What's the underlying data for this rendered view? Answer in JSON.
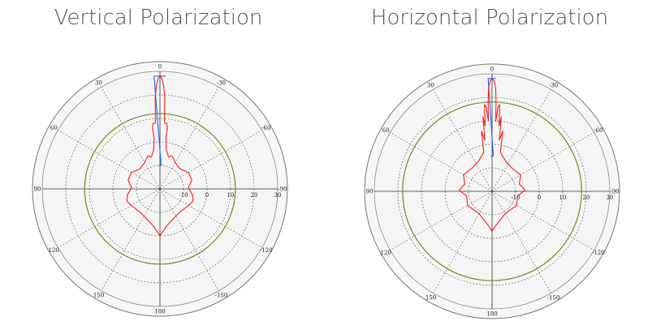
{
  "chart_data": [
    {
      "type": "polar",
      "title": "Vertical Polarization",
      "angle_labels": [
        "0",
        "-30",
        "-60",
        "-90",
        "-120",
        "-150",
        "180",
        "150",
        "120",
        "90",
        "60",
        "30"
      ],
      "radial_labels": [
        "-10",
        "0",
        "10",
        "20",
        "30"
      ],
      "grid": true,
      "reference_circle_value": 12,
      "series": [
        {
          "color": "#1f5fff",
          "points": [
            [
              -3,
              28
            ],
            [
              -2,
              28
            ],
            [
              -1,
              28
            ],
            [
              0,
              28
            ],
            [
              1,
              28
            ],
            [
              2,
              28
            ],
            [
              3,
              28
            ],
            [
              -3,
              -10
            ],
            [
              3,
              -10
            ]
          ]
        },
        {
          "color": "#ff1a1a",
          "points": [
            [
              0,
              28
            ],
            [
              -1,
              27
            ],
            [
              -2,
              24
            ],
            [
              -3,
              19
            ],
            [
              -3.5,
              12
            ],
            [
              -4,
              8
            ],
            [
              -6,
              8
            ],
            [
              -7,
              6
            ],
            [
              -6.5,
              2
            ],
            [
              -9,
              -3
            ],
            [
              -15,
              -6
            ],
            [
              -20,
              -5
            ],
            [
              -30,
              -7
            ],
            [
              -45,
              -8
            ],
            [
              -60,
              -6
            ],
            [
              -75,
              -6
            ],
            [
              -88,
              -8
            ],
            [
              -100,
              -6
            ],
            [
              -110,
              -5
            ],
            [
              -120,
              -6
            ],
            [
              -140,
              -7
            ],
            [
              -170,
              -4
            ],
            [
              180,
              0
            ],
            [
              170,
              -4
            ],
            [
              140,
              -7
            ],
            [
              120,
              -6
            ],
            [
              110,
              -5
            ],
            [
              100,
              -6
            ],
            [
              88,
              -8
            ],
            [
              75,
              -6
            ],
            [
              60,
              -6
            ],
            [
              45,
              -8
            ],
            [
              30,
              -7
            ],
            [
              20,
              -5
            ],
            [
              15,
              -6
            ],
            [
              9,
              -3
            ],
            [
              6.5,
              2
            ],
            [
              7,
              6
            ],
            [
              6,
              8
            ],
            [
              4,
              8
            ],
            [
              3.5,
              12
            ],
            [
              3,
              19
            ],
            [
              2,
              24
            ],
            [
              1,
              27
            ],
            [
              0,
              28
            ]
          ]
        }
      ]
    },
    {
      "type": "polar",
      "title": "Horizontal Polarization",
      "angle_labels": [
        "0",
        "-30",
        "-60",
        "-90",
        "-120",
        "-150",
        "180",
        "150",
        "120",
        "90",
        "60",
        "30"
      ],
      "radial_labels": [
        "-10",
        "0",
        "10",
        "20",
        "30"
      ],
      "grid": true,
      "reference_circle_value": 18,
      "series": [
        {
          "color": "#1f5fff",
          "points": [
            [
              -2,
              28
            ],
            [
              -1,
              28
            ],
            [
              0,
              28
            ],
            [
              1,
              28
            ],
            [
              2,
              28
            ],
            [
              -2,
              -5
            ],
            [
              2,
              -5
            ]
          ]
        },
        {
          "color": "#ff1a1a",
          "points": [
            [
              0,
              28
            ],
            [
              -1,
              27
            ],
            [
              -2,
              24
            ],
            [
              -2.5,
              18
            ],
            [
              -3,
              10
            ],
            [
              -4,
              16
            ],
            [
              -5,
              17
            ],
            [
              -6,
              8
            ],
            [
              -7,
              12
            ],
            [
              -8,
              2
            ],
            [
              -10,
              6
            ],
            [
              -12,
              -3
            ],
            [
              -15,
              -4
            ],
            [
              -25,
              -6
            ],
            [
              -40,
              -7
            ],
            [
              -60,
              -6
            ],
            [
              -75,
              -8
            ],
            [
              -88,
              -6
            ],
            [
              -100,
              -9
            ],
            [
              -120,
              -8
            ],
            [
              -150,
              -9
            ],
            [
              -175,
              -5
            ],
            [
              180,
              -3
            ],
            [
              175,
              -5
            ],
            [
              150,
              -9
            ],
            [
              120,
              -8
            ],
            [
              100,
              -9
            ],
            [
              88,
              -6
            ],
            [
              75,
              -8
            ],
            [
              60,
              -6
            ],
            [
              40,
              -7
            ],
            [
              25,
              -6
            ],
            [
              15,
              -4
            ],
            [
              12,
              -3
            ],
            [
              10,
              6
            ],
            [
              8,
              2
            ],
            [
              7,
              12
            ],
            [
              6,
              8
            ],
            [
              5,
              17
            ],
            [
              4,
              16
            ],
            [
              3,
              10
            ],
            [
              2.5,
              18
            ],
            [
              2,
              24
            ],
            [
              1,
              27
            ],
            [
              0,
              28
            ]
          ]
        }
      ]
    }
  ]
}
